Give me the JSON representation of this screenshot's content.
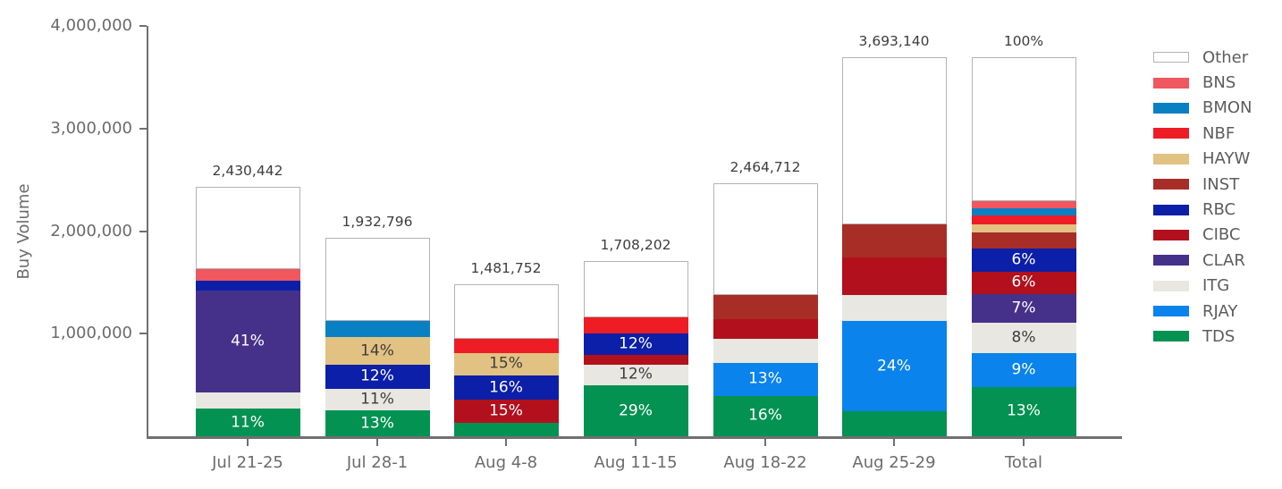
{
  "chart_data": {
    "type": "bar",
    "stacked": true,
    "title": "",
    "ylabel": "Buy Volume",
    "xlabel": "",
    "ylim": [
      0,
      4000000
    ],
    "grid": false,
    "legend_position": "right",
    "yticks": [
      {
        "value": 4000000,
        "label": "4,000,000"
      },
      {
        "value": 3000000,
        "label": "3,000,000"
      },
      {
        "value": 2000000,
        "label": "2,000,000"
      },
      {
        "value": 1000000,
        "label": "1,000,000"
      }
    ],
    "legend": [
      {
        "name": "Other",
        "color": "#ffffff"
      },
      {
        "name": "BNS",
        "color": "#f0575f"
      },
      {
        "name": "BMON",
        "color": "#0a80c4"
      },
      {
        "name": "NBF",
        "color": "#ee1c25"
      },
      {
        "name": "HAYW",
        "color": "#e2c282"
      },
      {
        "name": "INST",
        "color": "#a92d27"
      },
      {
        "name": "RBC",
        "color": "#0c1fa8"
      },
      {
        "name": "CIBC",
        "color": "#b2101d"
      },
      {
        "name": "CLAR",
        "color": "#45318a"
      },
      {
        "name": "ITG",
        "color": "#e8e7e2"
      },
      {
        "name": "RJAY",
        "color": "#0a83ec"
      },
      {
        "name": "TDS",
        "color": "#049252"
      }
    ],
    "bars": [
      {
        "category": "Jul 21-25",
        "total": 2430442,
        "total_label": "2,430,442",
        "segments": [
          {
            "broker": "TDS",
            "value": 267000,
            "label": "11%"
          },
          {
            "broker": "ITG",
            "value": 158000,
            "label": null
          },
          {
            "broker": "CLAR",
            "value": 996500,
            "label": "41%"
          },
          {
            "broker": "RBC",
            "value": 97000,
            "label": null
          },
          {
            "broker": "BNS",
            "value": 110000,
            "label": null
          },
          {
            "broker": "Other",
            "value": 801942,
            "label": null
          }
        ]
      },
      {
        "category": "Jul 28-1",
        "total": 1932796,
        "total_label": "1,932,796",
        "segments": [
          {
            "broker": "TDS",
            "value": 251000,
            "label": "13%"
          },
          {
            "broker": "ITG",
            "value": 212600,
            "label": "11%"
          },
          {
            "broker": "RBC",
            "value": 232000,
            "label": "12%"
          },
          {
            "broker": "HAYW",
            "value": 270600,
            "label": "14%"
          },
          {
            "broker": "BMON",
            "value": 158000,
            "label": null
          },
          {
            "broker": "Other",
            "value": 808596,
            "label": null
          }
        ]
      },
      {
        "category": "Aug 4-8",
        "total": 1481752,
        "total_label": "1,481,752",
        "segments": [
          {
            "broker": "TDS",
            "value": 133000,
            "label": null
          },
          {
            "broker": "CIBC",
            "value": 222300,
            "label": "15%"
          },
          {
            "broker": "RBC",
            "value": 237100,
            "label": "16%"
          },
          {
            "broker": "HAYW",
            "value": 222300,
            "label": "15%"
          },
          {
            "broker": "NBF",
            "value": 135000,
            "label": null
          },
          {
            "broker": "Other",
            "value": 532052,
            "label": null
          }
        ]
      },
      {
        "category": "Aug 11-15",
        "total": 1708202,
        "total_label": "1,708,202",
        "segments": [
          {
            "broker": "TDS",
            "value": 495400,
            "label": "29%"
          },
          {
            "broker": "ITG",
            "value": 205000,
            "label": "12%"
          },
          {
            "broker": "CIBC",
            "value": 94000,
            "label": null
          },
          {
            "broker": "RBC",
            "value": 205000,
            "label": "12%"
          },
          {
            "broker": "NBF",
            "value": 157000,
            "label": null
          },
          {
            "broker": "Other",
            "value": 551802,
            "label": null
          }
        ]
      },
      {
        "category": "Aug 18-22",
        "total": 2464712,
        "total_label": "2,464,712",
        "segments": [
          {
            "broker": "TDS",
            "value": 394400,
            "label": "16%"
          },
          {
            "broker": "RJAY",
            "value": 320400,
            "label": "13%"
          },
          {
            "broker": "ITG",
            "value": 234000,
            "label": null
          },
          {
            "broker": "CIBC",
            "value": 190000,
            "label": null
          },
          {
            "broker": "INST",
            "value": 234000,
            "label": null
          },
          {
            "broker": "Other",
            "value": 1091912,
            "label": null
          }
        ]
      },
      {
        "category": "Aug 25-29",
        "total": 3693140,
        "total_label": "3,693,140",
        "segments": [
          {
            "broker": "TDS",
            "value": 240000,
            "label": null
          },
          {
            "broker": "RJAY",
            "value": 886400,
            "label": "24%"
          },
          {
            "broker": "ITG",
            "value": 247000,
            "label": null
          },
          {
            "broker": "CIBC",
            "value": 369300,
            "label": null
          },
          {
            "broker": "INST",
            "value": 325000,
            "label": null
          },
          {
            "broker": "Other",
            "value": 1625440,
            "label": null
          }
        ]
      },
      {
        "category": "Total",
        "total": 3693140,
        "total_label": "100%",
        "segments": [
          {
            "broker": "TDS",
            "value": 480108,
            "label": "13%"
          },
          {
            "broker": "RJAY",
            "value": 332383,
            "label": "9%"
          },
          {
            "broker": "ITG",
            "value": 295451,
            "label": "8%"
          },
          {
            "broker": "CLAR",
            "value": 276986,
            "label": "7%"
          },
          {
            "broker": "CIBC",
            "value": 221588,
            "label": "6%"
          },
          {
            "broker": "RBC",
            "value": 221588,
            "label": "6%"
          },
          {
            "broker": "INST",
            "value": 158805,
            "label": null
          },
          {
            "broker": "HAYW",
            "value": 77556,
            "label": null
          },
          {
            "broker": "NBF",
            "value": 88635,
            "label": null
          },
          {
            "broker": "BMON",
            "value": 66477,
            "label": null
          },
          {
            "broker": "BNS",
            "value": 70170,
            "label": null
          },
          {
            "broker": "Other",
            "value": 1403393,
            "label": null
          }
        ]
      }
    ]
  }
}
